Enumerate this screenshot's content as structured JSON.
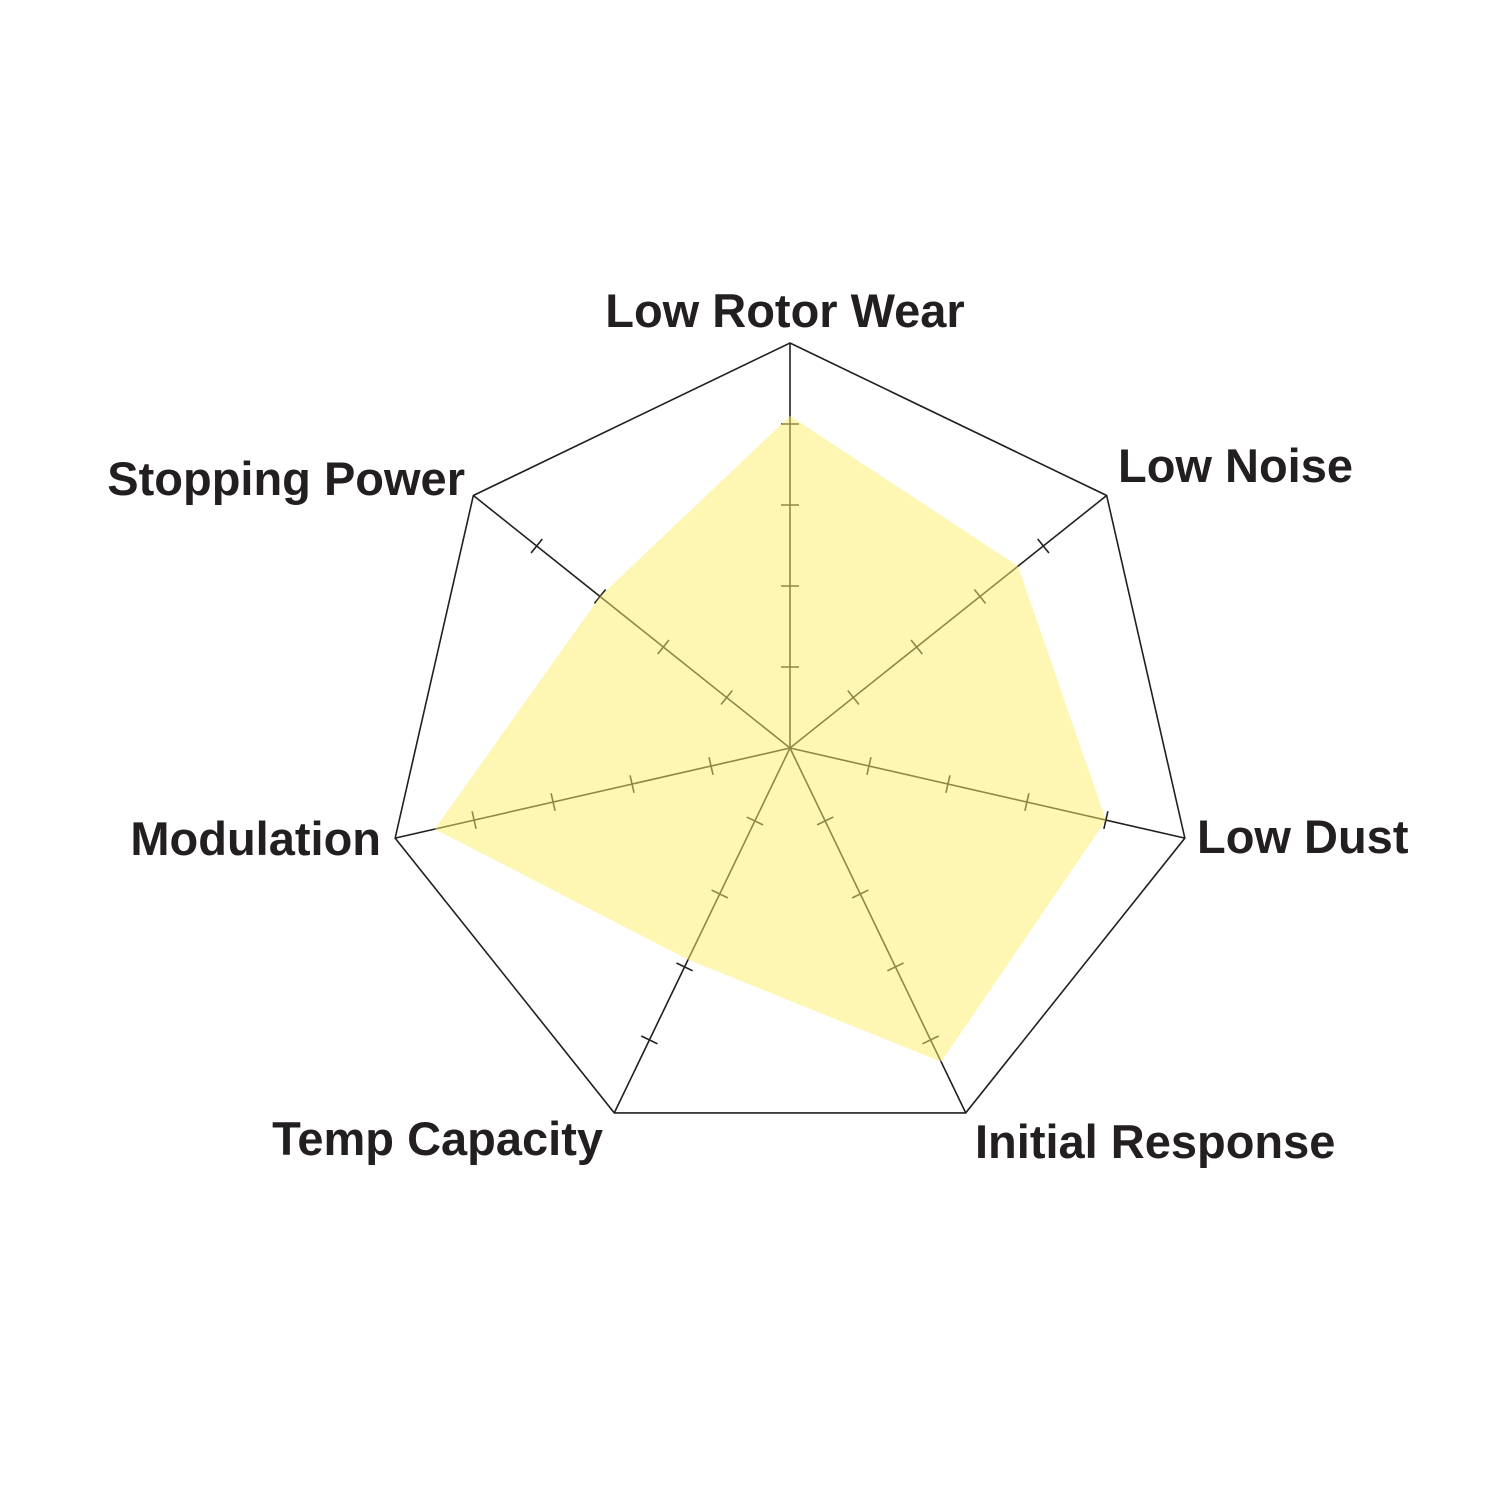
{
  "chart_data": {
    "type": "radar",
    "categories": [
      "Low Rotor Wear",
      "Low Noise",
      "Low Dust",
      "Initial Response",
      "Temp Capacity",
      "Modulation",
      "Stopping Power"
    ],
    "values": [
      4.1,
      3.6,
      4.0,
      4.3,
      2.9,
      4.5,
      3.0
    ],
    "range": [
      0,
      5
    ],
    "tick_interval": 1,
    "title": "",
    "legend": "none",
    "colors": {
      "fill": "#fdf06a",
      "grid": "#231f20",
      "text": "#231f20"
    }
  }
}
